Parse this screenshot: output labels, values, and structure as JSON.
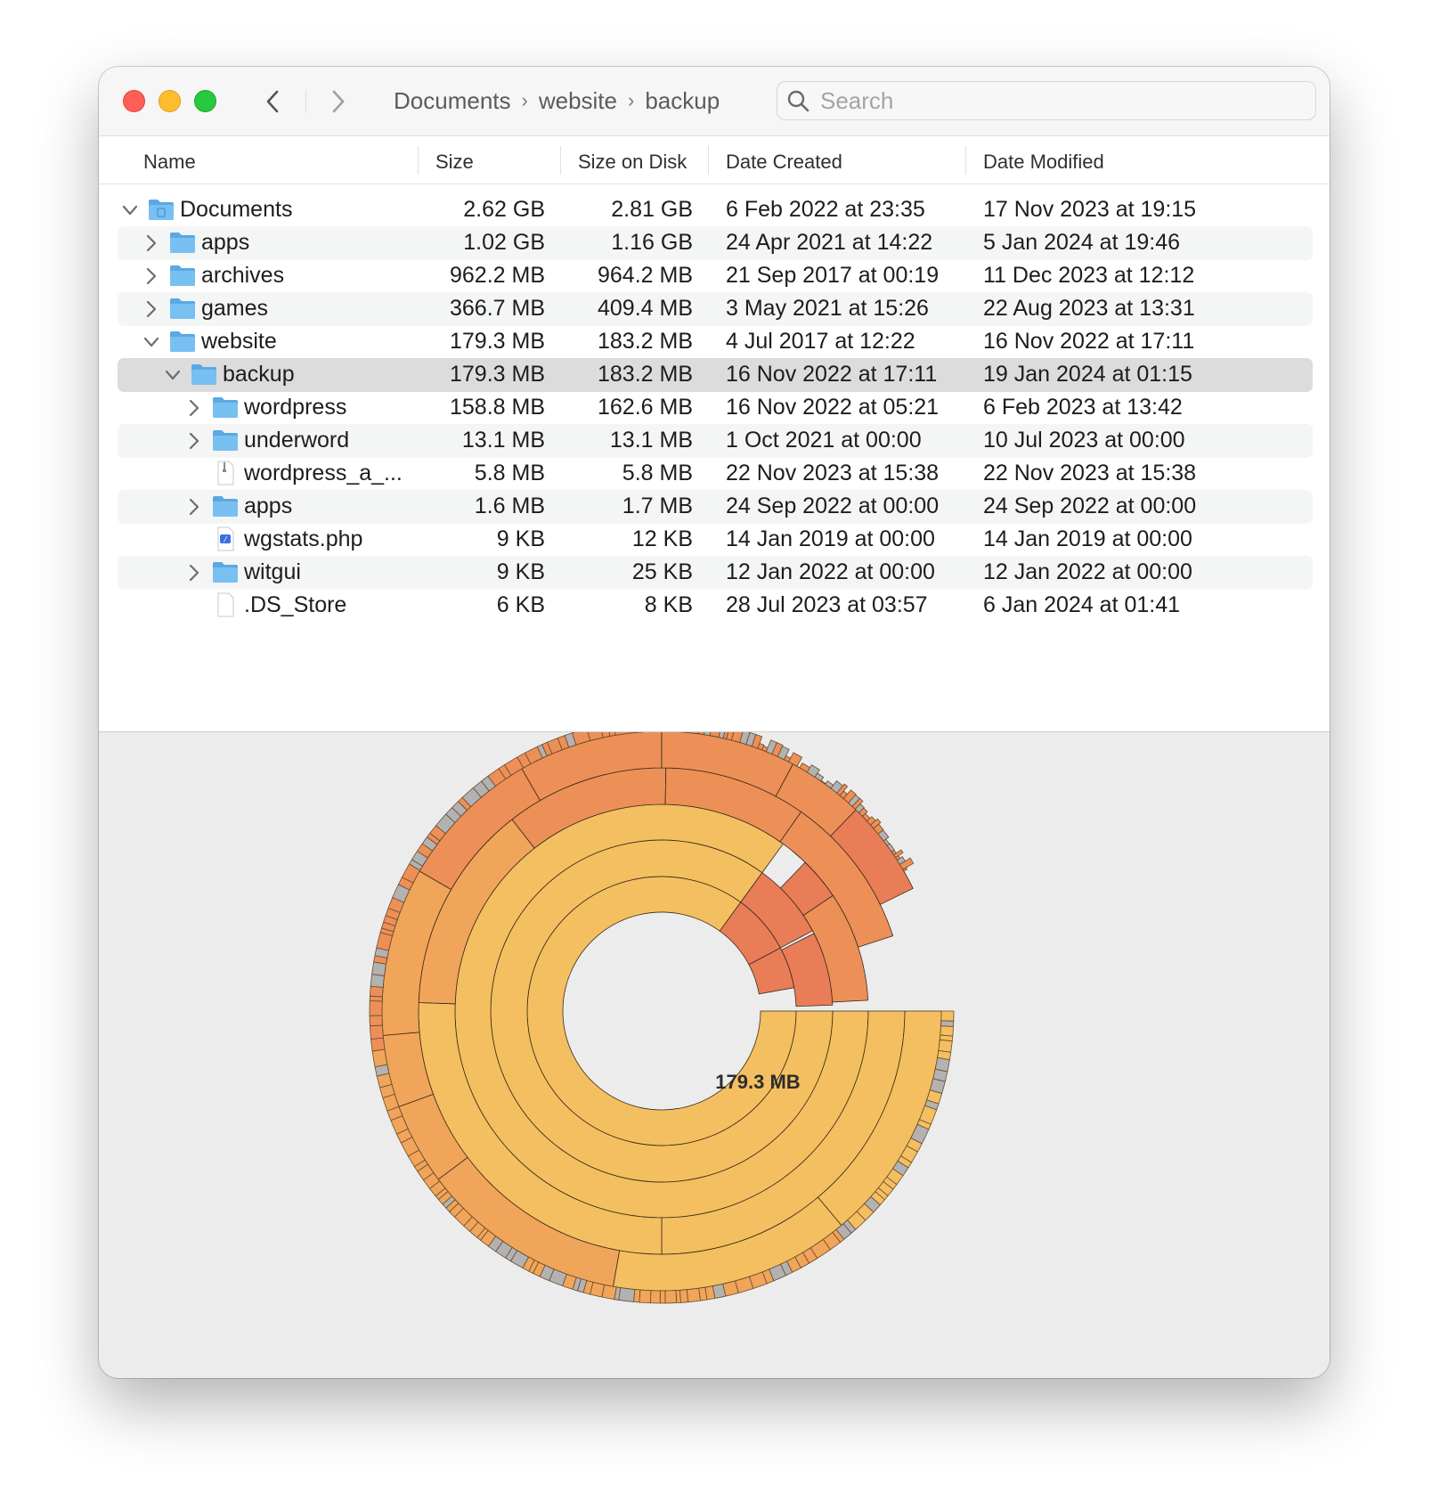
{
  "window": {
    "breadcrumb": [
      "Documents",
      "website",
      "backup"
    ],
    "breadcrumb_separator": "›"
  },
  "search": {
    "placeholder": "Search",
    "value": ""
  },
  "columns": [
    "Name",
    "Size",
    "Size on Disk",
    "Date Created",
    "Date Modified"
  ],
  "rows": [
    {
      "name": "Documents",
      "size": "2.62 GB",
      "disk": "2.81 GB",
      "created": "6 Feb 2022 at 23:35",
      "modified": "17 Nov 2023 at 19:15",
      "depth": 0,
      "kind": "folder-documents",
      "chevron": "down",
      "selected": false
    },
    {
      "name": "apps",
      "size": "1.02 GB",
      "disk": "1.16 GB",
      "created": "24 Apr 2021 at 14:22",
      "modified": "5 Jan 2024 at 19:46",
      "depth": 1,
      "kind": "folder",
      "chevron": "right",
      "selected": false
    },
    {
      "name": "archives",
      "size": "962.2 MB",
      "disk": "964.2 MB",
      "created": "21 Sep 2017 at 00:19",
      "modified": "11 Dec 2023 at 12:12",
      "depth": 1,
      "kind": "folder",
      "chevron": "right",
      "selected": false
    },
    {
      "name": "games",
      "size": "366.7 MB",
      "disk": "409.4 MB",
      "created": "3 May 2021 at 15:26",
      "modified": "22 Aug 2023 at 13:31",
      "depth": 1,
      "kind": "folder",
      "chevron": "right",
      "selected": false
    },
    {
      "name": "website",
      "size": "179.3 MB",
      "disk": "183.2 MB",
      "created": "4 Jul 2017 at 12:22",
      "modified": "16 Nov 2022 at 17:11",
      "depth": 1,
      "kind": "folder",
      "chevron": "down",
      "selected": false
    },
    {
      "name": "backup",
      "size": "179.3 MB",
      "disk": "183.2 MB",
      "created": "16 Nov 2022 at 17:11",
      "modified": "19 Jan 2024 at 01:15",
      "depth": 2,
      "kind": "folder",
      "chevron": "down",
      "selected": true
    },
    {
      "name": "wordpress",
      "size": "158.8 MB",
      "disk": "162.6 MB",
      "created": "16 Nov 2022 at 05:21",
      "modified": "6 Feb 2023 at 13:42",
      "depth": 3,
      "kind": "folder",
      "chevron": "right",
      "selected": false
    },
    {
      "name": "underword",
      "size": "13.1 MB",
      "disk": "13.1 MB",
      "created": "1 Oct 2021 at 00:00",
      "modified": "10 Jul 2023 at 00:00",
      "depth": 3,
      "kind": "folder",
      "chevron": "right",
      "selected": false
    },
    {
      "name": "wordpress_a_...",
      "size": "5.8 MB",
      "disk": "5.8 MB",
      "created": "22 Nov 2023 at 15:38",
      "modified": "22 Nov 2023 at 15:38",
      "depth": 3,
      "kind": "archive",
      "chevron": "none",
      "selected": false
    },
    {
      "name": "apps",
      "size": "1.6 MB",
      "disk": "1.7 MB",
      "created": "24 Sep 2022 at 00:00",
      "modified": "24 Sep 2022 at 00:00",
      "depth": 3,
      "kind": "folder",
      "chevron": "right",
      "selected": false
    },
    {
      "name": "wgstats.php",
      "size": "9 KB",
      "disk": "12 KB",
      "created": "14 Jan 2019 at 00:00",
      "modified": "14 Jan 2019 at 00:00",
      "depth": 3,
      "kind": "php-file",
      "chevron": "none",
      "selected": false
    },
    {
      "name": "witgui",
      "size": "9 KB",
      "disk": "25 KB",
      "created": "12 Jan 2022 at 00:00",
      "modified": "12 Jan 2022 at 00:00",
      "depth": 3,
      "kind": "folder",
      "chevron": "right",
      "selected": false
    },
    {
      "name": ".DS_Store",
      "size": "6 KB",
      "disk": "8 KB",
      "created": "28 Jul 2023 at 03:57",
      "modified": "6 Jan 2024 at 01:41",
      "depth": 3,
      "kind": "file",
      "chevron": "none",
      "selected": false
    }
  ],
  "chart": {
    "center_label": "179.3 MB"
  },
  "colors": {
    "yellow": "#f4bf60",
    "orange_light": "#f0a55a",
    "orange": "#ec9058",
    "orange_red": "#e97d58",
    "gray_tick": "#b2b2b2",
    "folder_blue": "#6ab4ec",
    "selection": "#dcdcdc"
  }
}
